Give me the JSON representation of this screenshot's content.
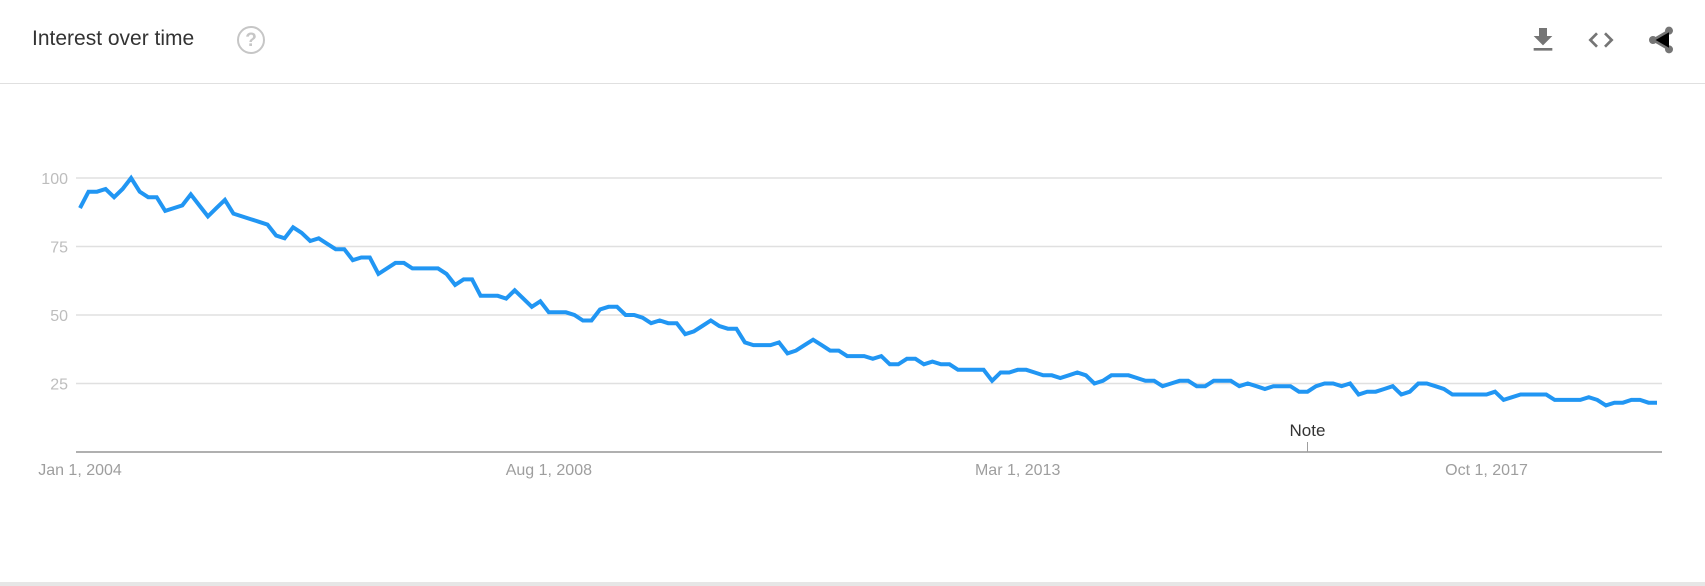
{
  "header": {
    "title": "Interest over time",
    "help_icon": "help-circle-icon",
    "actions": [
      {
        "name": "download-icon",
        "label": "Download CSV"
      },
      {
        "name": "embed-code-icon",
        "label": "Embed"
      },
      {
        "name": "share-icon",
        "label": "Share"
      }
    ]
  },
  "colors": {
    "series": "#2196f3",
    "grid": "#e0e0e0",
    "axis": "#b0b0b0",
    "icons": "#757575"
  },
  "chart_data": {
    "type": "line",
    "title": "",
    "xlabel": "",
    "ylabel": "",
    "frequency": "monthly",
    "x_start": "2004-01",
    "x_end": "2019-06",
    "ylim": [
      0,
      100
    ],
    "yticks": [
      100,
      75,
      50,
      25
    ],
    "grid": true,
    "xtick_labels": [
      {
        "label": "Jan 1, 2004",
        "date": "2004-01"
      },
      {
        "label": "Aug 1, 2008",
        "date": "2008-08"
      },
      {
        "label": "Mar 1, 2013",
        "date": "2013-03"
      },
      {
        "label": "Oct 1, 2017",
        "date": "2017-10"
      }
    ],
    "annotations": [
      {
        "label": "Note",
        "date": "2016-01"
      }
    ],
    "series": [
      {
        "values": [
          89,
          95,
          95,
          96,
          93,
          96,
          100,
          95,
          93,
          93,
          88,
          89,
          90,
          94,
          90,
          86,
          89,
          92,
          87,
          86,
          85,
          84,
          83,
          79,
          78,
          82,
          80,
          77,
          78,
          76,
          74,
          74,
          70,
          71,
          71,
          65,
          67,
          69,
          69,
          67,
          67,
          67,
          67,
          65,
          61,
          63,
          63,
          57,
          57,
          57,
          56,
          59,
          56,
          53,
          55,
          51,
          51,
          51,
          50,
          48,
          48,
          52,
          53,
          53,
          50,
          50,
          49,
          47,
          48,
          47,
          47,
          43,
          44,
          46,
          48,
          46,
          45,
          45,
          40,
          39,
          39,
          39,
          40,
          36,
          37,
          39,
          41,
          39,
          37,
          37,
          35,
          35,
          35,
          34,
          35,
          32,
          32,
          34,
          34,
          32,
          33,
          32,
          32,
          30,
          30,
          30,
          30,
          26,
          29,
          29,
          30,
          30,
          29,
          28,
          28,
          27,
          28,
          29,
          28,
          25,
          26,
          28,
          28,
          28,
          27,
          26,
          26,
          24,
          25,
          26,
          26,
          24,
          24,
          26,
          26,
          26,
          24,
          25,
          24,
          23,
          24,
          24,
          24,
          22,
          22,
          24,
          25,
          25,
          24,
          25,
          21,
          22,
          22,
          23,
          24,
          21,
          22,
          25,
          25,
          24,
          23,
          21,
          21,
          21,
          21,
          21,
          22,
          19,
          20,
          21,
          21,
          21,
          21,
          19,
          19,
          19,
          19,
          20,
          19,
          17,
          18,
          18,
          19,
          19,
          18,
          18
        ]
      }
    ]
  }
}
